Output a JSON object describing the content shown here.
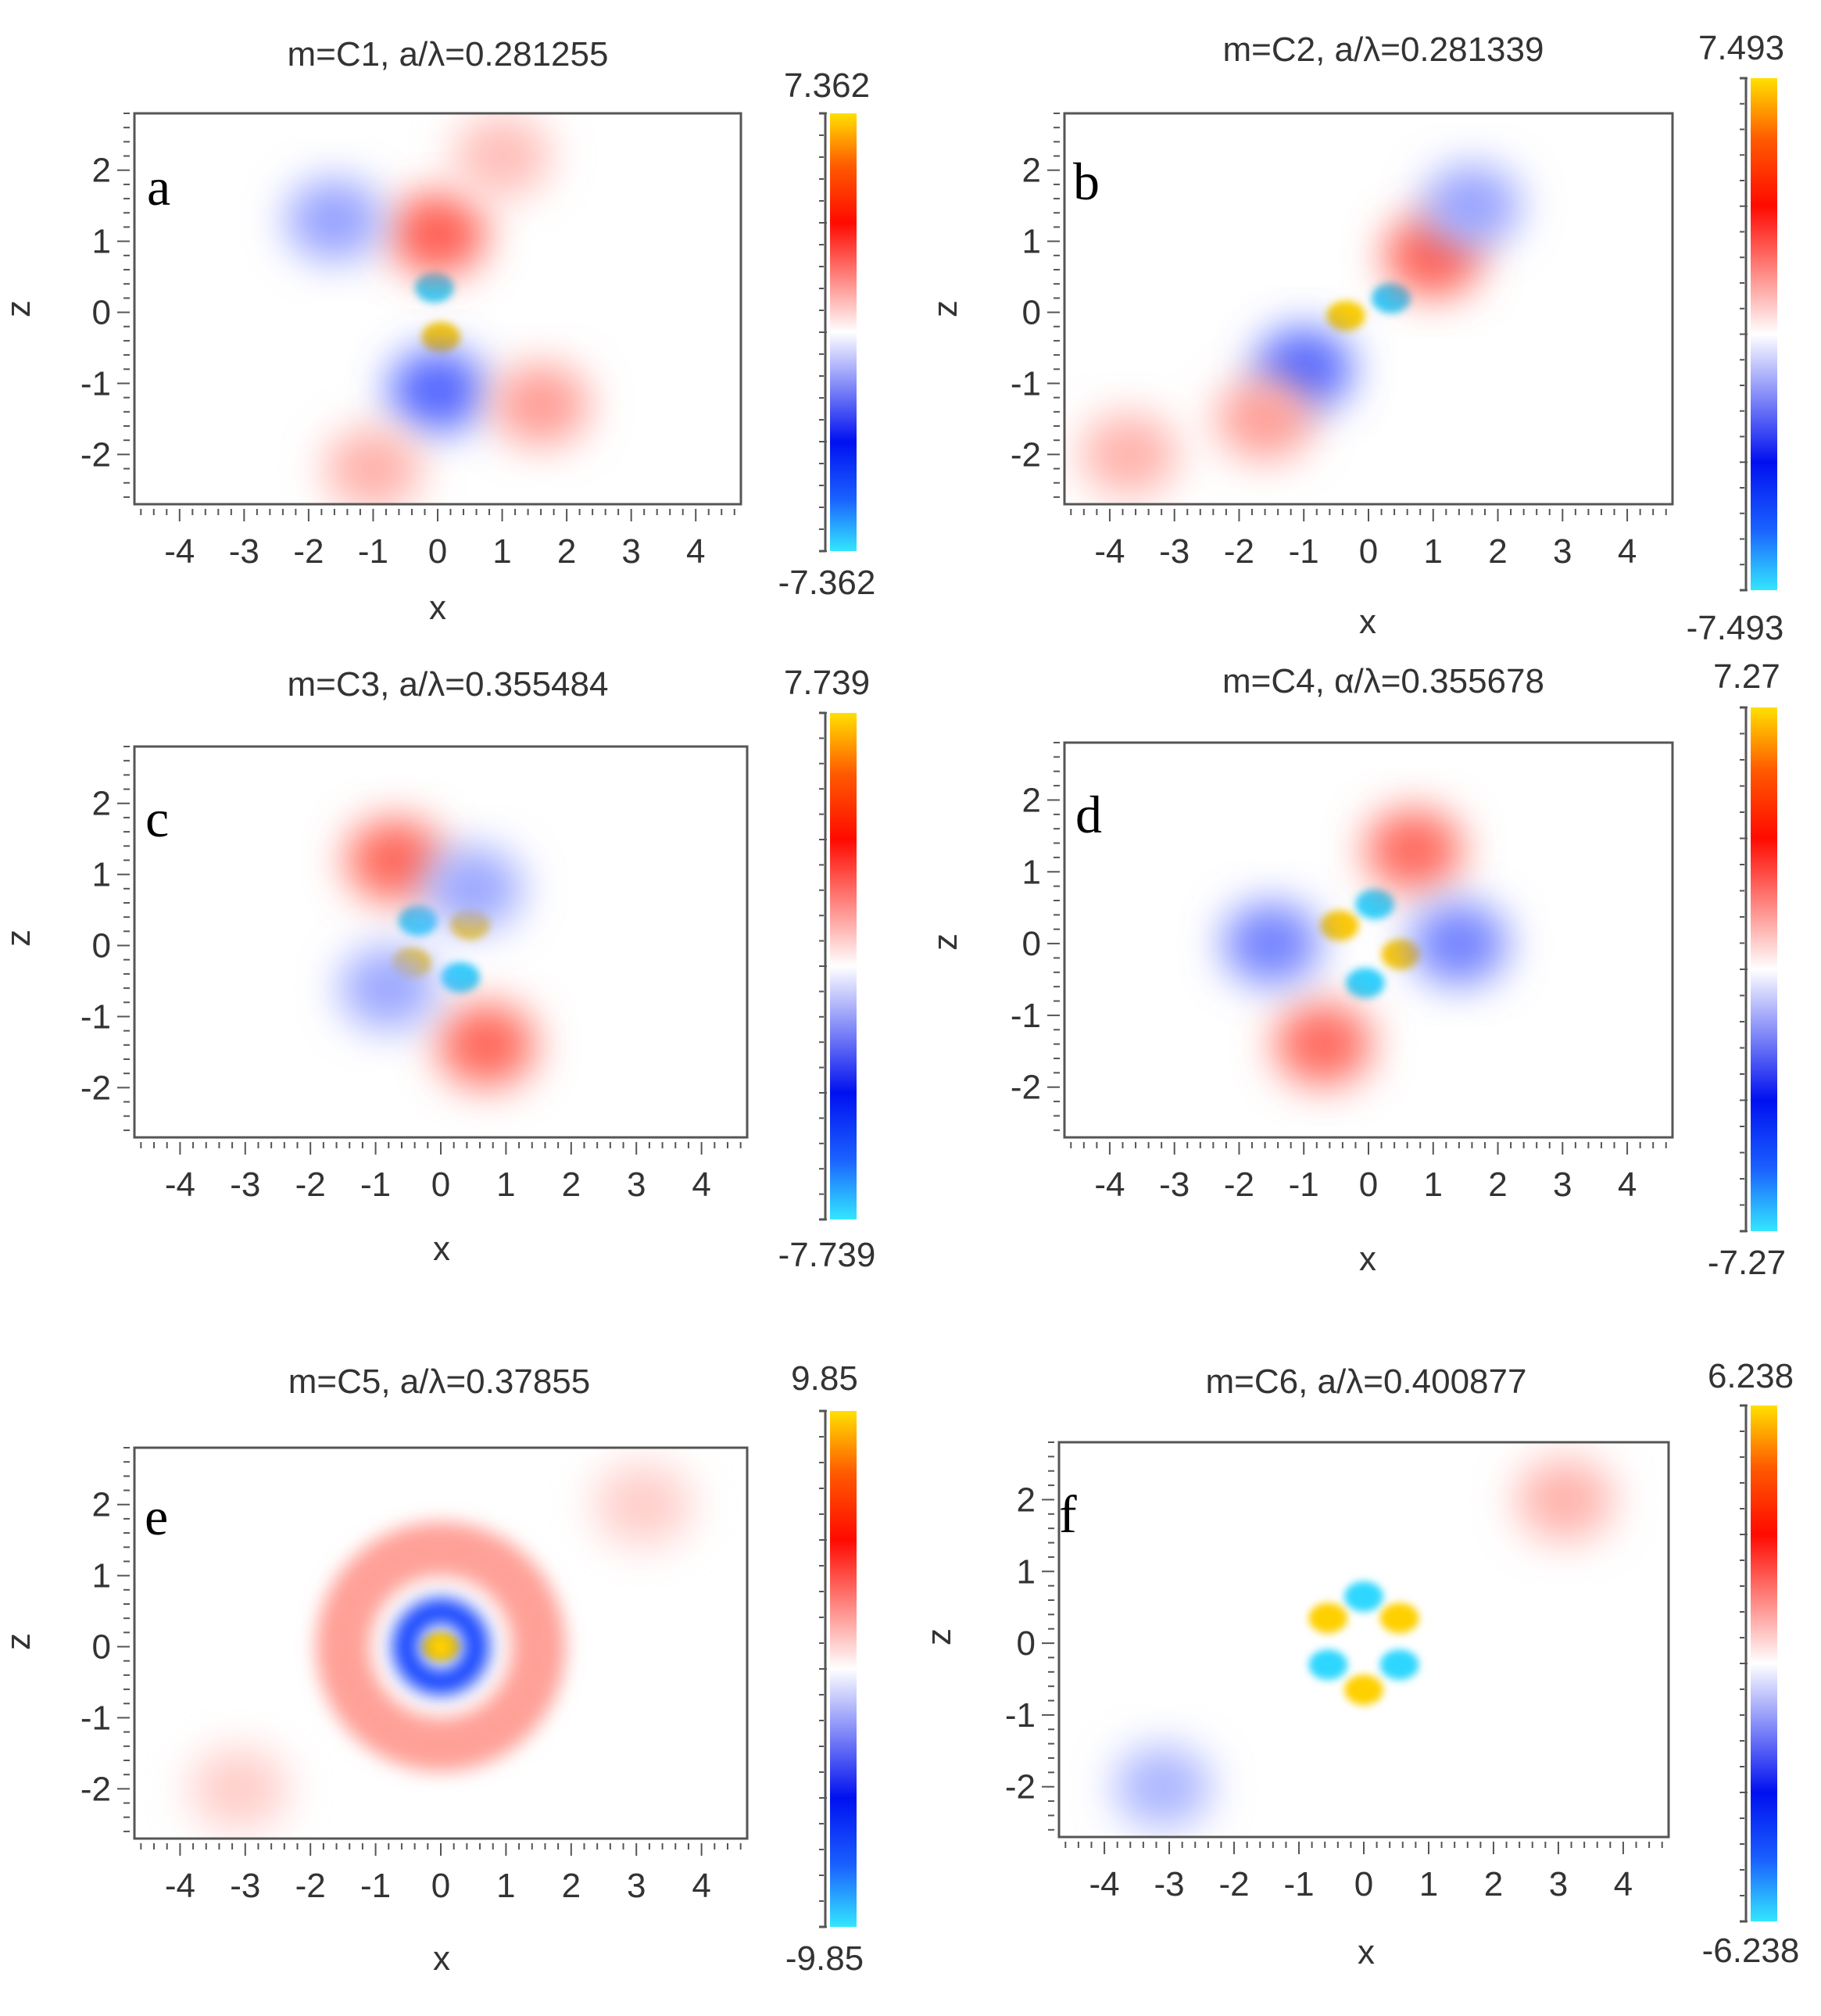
{
  "figure": {
    "panels": [
      {
        "letter": "a",
        "title": "m=C1, a/λ=0.281255",
        "cbar_max_label": "7.362",
        "cbar_min_label": "-7.362"
      },
      {
        "letter": "b",
        "title": "m=C2, a/λ=0.281339",
        "cbar_max_label": "7.493",
        "cbar_min_label": "-7.493"
      },
      {
        "letter": "c",
        "title": "m=C3, a/λ=0.355484",
        "cbar_max_label": "7.739",
        "cbar_min_label": "-7.739"
      },
      {
        "letter": "d",
        "title": "m=C4, α/λ=0.355678",
        "cbar_max_label": "7.27",
        "cbar_min_label": "-7.27"
      },
      {
        "letter": "e",
        "title": "m=C5, a/λ=0.37855",
        "cbar_max_label": "9.85",
        "cbar_min_label": "-9.85"
      },
      {
        "letter": "f",
        "title": "m=C6, a/λ=0.400877",
        "cbar_max_label": "6.238",
        "cbar_min_label": "-6.238"
      }
    ]
  },
  "chart_data": [
    {
      "type": "heatmap",
      "panel": "a",
      "title": "m=C1, a/λ=0.281255",
      "xlabel": "x",
      "ylabel": "z",
      "xlim": [
        -4.7,
        4.7
      ],
      "ylim": [
        -2.7,
        2.8
      ],
      "xticks": [
        -4,
        -3,
        -2,
        -1,
        0,
        1,
        2,
        3,
        4
      ],
      "yticks": [
        2,
        1,
        0,
        -1,
        -2
      ],
      "colorbar": {
        "min": -7.362,
        "max": 7.362,
        "colors": [
          "#33e6ff",
          "#0020ff",
          "#ffffff",
          "#ff1a00",
          "#ffe000"
        ]
      },
      "features": [
        {
          "x": -0.05,
          "z": 0.35,
          "value": -7.0
        },
        {
          "x": 0.05,
          "z": -0.35,
          "value": 7.0
        },
        {
          "x": 0.0,
          "z": 1.1,
          "value": 2.5
        },
        {
          "x": 0.0,
          "z": -1.1,
          "value": -2.5
        },
        {
          "x": -1.6,
          "z": 1.3,
          "value": -1.5
        },
        {
          "x": 1.6,
          "z": -1.3,
          "value": 1.5
        },
        {
          "x": -1.0,
          "z": -2.2,
          "value": 1.2
        },
        {
          "x": 1.0,
          "z": 2.2,
          "value": 1.0
        }
      ]
    },
    {
      "type": "heatmap",
      "panel": "b",
      "title": "m=C2, a/λ=0.281339",
      "xlabel": "x",
      "ylabel": "z",
      "xlim": [
        -4.7,
        4.7
      ],
      "ylim": [
        -2.7,
        2.8
      ],
      "xticks": [
        -4,
        -3,
        -2,
        -1,
        0,
        1,
        2,
        3,
        4
      ],
      "yticks": [
        2,
        1,
        0,
        -1,
        -2
      ],
      "colorbar": {
        "min": -7.493,
        "max": 7.493,
        "colors": [
          "#33e6ff",
          "#0020ff",
          "#ffffff",
          "#ff1a00",
          "#ffe000"
        ]
      },
      "features": [
        {
          "x": -0.35,
          "z": -0.05,
          "value": 7.2
        },
        {
          "x": 0.35,
          "z": 0.2,
          "value": -7.0
        },
        {
          "x": 1.0,
          "z": 0.8,
          "value": 2.5
        },
        {
          "x": -1.0,
          "z": -0.8,
          "value": -2.5
        },
        {
          "x": 1.6,
          "z": 1.5,
          "value": -1.5
        },
        {
          "x": -1.6,
          "z": -1.5,
          "value": 1.5
        },
        {
          "x": -3.7,
          "z": -2.0,
          "value": 1.2
        }
      ]
    },
    {
      "type": "heatmap",
      "panel": "c",
      "title": "m=C3, a/λ=0.355484",
      "xlabel": "x",
      "ylabel": "z",
      "xlim": [
        -4.7,
        4.7
      ],
      "ylim": [
        -2.7,
        2.8
      ],
      "xticks": [
        -4,
        -3,
        -2,
        -1,
        0,
        1,
        2,
        3,
        4
      ],
      "yticks": [
        2,
        1,
        0,
        -1,
        -2
      ],
      "colorbar": {
        "min": -7.739,
        "max": 7.739,
        "colors": [
          "#33e6ff",
          "#0020ff",
          "#ffffff",
          "#ff1a00",
          "#ffe000"
        ]
      },
      "features": [
        {
          "x": -0.35,
          "z": 0.35,
          "value": -7.3
        },
        {
          "x": 0.45,
          "z": 0.3,
          "value": 7.3
        },
        {
          "x": -0.45,
          "z": -0.25,
          "value": 7.3
        },
        {
          "x": 0.3,
          "z": -0.45,
          "value": -7.3
        },
        {
          "x": -0.7,
          "z": 1.2,
          "value": 2.5
        },
        {
          "x": 0.7,
          "z": -1.4,
          "value": 2.5
        },
        {
          "x": 0.5,
          "z": 0.8,
          "value": -1.5
        },
        {
          "x": -0.8,
          "z": -0.6,
          "value": -1.5
        }
      ]
    },
    {
      "type": "heatmap",
      "panel": "d",
      "title": "m=C4, α/λ=0.355678",
      "xlabel": "x",
      "ylabel": "z",
      "xlim": [
        -4.7,
        4.7
      ],
      "ylim": [
        -2.7,
        2.8
      ],
      "xticks": [
        -4,
        -3,
        -2,
        -1,
        0,
        1,
        2,
        3,
        4
      ],
      "yticks": [
        2,
        1,
        0,
        -1,
        -2
      ],
      "colorbar": {
        "min": -7.27,
        "max": 7.27,
        "colors": [
          "#33e6ff",
          "#0020ff",
          "#ffffff",
          "#ff1a00",
          "#ffe000"
        ]
      },
      "features": [
        {
          "x": -0.45,
          "z": 0.25,
          "value": 6.9
        },
        {
          "x": 0.5,
          "z": -0.15,
          "value": 6.9
        },
        {
          "x": 0.1,
          "z": 0.55,
          "value": -6.9
        },
        {
          "x": -0.05,
          "z": -0.55,
          "value": -6.9
        },
        {
          "x": 0.7,
          "z": 1.3,
          "value": 2.3
        },
        {
          "x": -0.7,
          "z": -1.4,
          "value": 2.3
        },
        {
          "x": 1.4,
          "z": 0.0,
          "value": -2.0
        },
        {
          "x": -1.5,
          "z": 0.0,
          "value": -2.0
        }
      ]
    },
    {
      "type": "heatmap",
      "panel": "e",
      "title": "m=C5, a/λ=0.37855",
      "xlabel": "x",
      "ylabel": "z",
      "xlim": [
        -4.7,
        4.7
      ],
      "ylim": [
        -2.7,
        2.8
      ],
      "xticks": [
        -4,
        -3,
        -2,
        -1,
        0,
        1,
        2,
        3,
        4
      ],
      "yticks": [
        2,
        1,
        0,
        -1,
        -2
      ],
      "colorbar": {
        "min": -9.85,
        "max": 9.85,
        "colors": [
          "#33e6ff",
          "#0020ff",
          "#ffffff",
          "#ff1a00",
          "#ffe000"
        ]
      },
      "features": [
        {
          "x": 0.0,
          "z": 0.0,
          "value": 9.5
        },
        {
          "x": 0.0,
          "z": 0.0,
          "ring_radius": 0.55,
          "value": -5.5
        },
        {
          "x": 0.0,
          "z": 0.0,
          "ring_radius": 1.5,
          "value": 2.0
        },
        {
          "x": 3.1,
          "z": 2.0,
          "value": 1.0
        },
        {
          "x": -3.1,
          "z": -2.0,
          "value": 1.0
        }
      ]
    },
    {
      "type": "heatmap",
      "panel": "f",
      "title": "m=C6, a/λ=0.400877",
      "xlabel": "x",
      "ylabel": "z",
      "xlim": [
        -4.7,
        4.7
      ],
      "ylim": [
        -2.7,
        2.8
      ],
      "xticks": [
        -4,
        -3,
        -2,
        -1,
        0,
        1,
        2,
        3,
        4
      ],
      "yticks": [
        2,
        1,
        0,
        -1,
        -2
      ],
      "colorbar": {
        "min": -6.238,
        "max": 6.238,
        "colors": [
          "#33e6ff",
          "#0020ff",
          "#ffffff",
          "#ff1a00",
          "#ffe000"
        ]
      },
      "features": [
        {
          "x": 0.0,
          "z": 0.65,
          "value": -6.0
        },
        {
          "x": 0.55,
          "z": 0.35,
          "value": 6.0
        },
        {
          "x": -0.55,
          "z": 0.35,
          "value": 6.0
        },
        {
          "x": 0.0,
          "z": -0.65,
          "value": 6.0
        },
        {
          "x": 0.55,
          "z": -0.3,
          "value": -6.0
        },
        {
          "x": -0.55,
          "z": -0.3,
          "value": -6.0
        },
        {
          "x": 3.1,
          "z": 2.0,
          "value": 1.0
        },
        {
          "x": -3.1,
          "z": -2.0,
          "value": -1.0
        }
      ]
    }
  ]
}
